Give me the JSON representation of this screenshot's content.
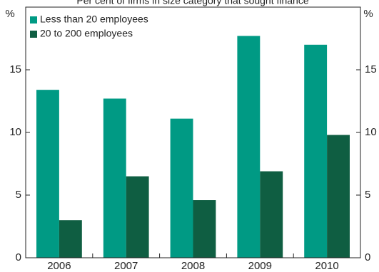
{
  "chart_data": {
    "type": "bar",
    "title": "Per cent of firms in size category that sought finance",
    "y_label": "%",
    "y2_label": "%",
    "categories": [
      "2006",
      "2007",
      "2008",
      "2009",
      "2010"
    ],
    "series": [
      {
        "name": "Less than 20 employees",
        "color": "#009a84",
        "values": [
          13.4,
          12.7,
          11.1,
          17.7,
          17.0
        ]
      },
      {
        "name": "20 to 200 employees",
        "color": "#0f5e42",
        "values": [
          3.0,
          6.5,
          4.6,
          6.9,
          9.8
        ]
      }
    ],
    "ylim": [
      0,
      20
    ],
    "yticks": [
      0,
      5,
      10,
      15
    ],
    "y2lim": [
      0,
      20
    ],
    "y2ticks": [
      0,
      5,
      10,
      15
    ],
    "legend": "upper left"
  }
}
